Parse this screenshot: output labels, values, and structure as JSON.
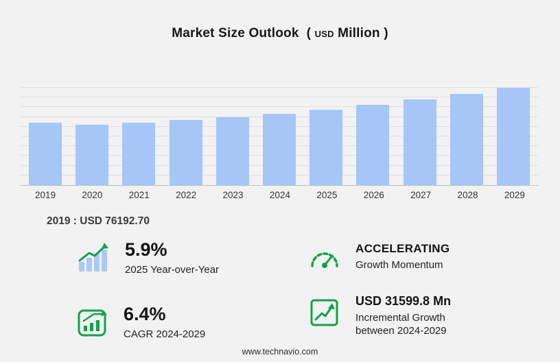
{
  "title": {
    "main": "Market Size Outlook",
    "open": "(",
    "currency": "USD",
    "unit": "Million",
    "close": ")"
  },
  "chart_data": {
    "type": "bar",
    "title": "Market Size Outlook (USD Million)",
    "categories": [
      "2019",
      "2020",
      "2021",
      "2022",
      "2023",
      "2024",
      "2025",
      "2026",
      "2027",
      "2028",
      "2029"
    ],
    "values": [
      76192.7,
      73800,
      76000,
      79000,
      82600,
      86892.3,
      92018.9,
      97600,
      103900,
      110900,
      118492.1
    ],
    "xlabel": "",
    "ylabel": "",
    "ylim": [
      0,
      120000
    ],
    "grid": "horizontal",
    "legend": "none",
    "bar_color": "#a6c6f8"
  },
  "base_year_label": "2019 : USD  76192.70",
  "stats": [
    {
      "icon": "bar-growth-arrow-icon",
      "value": "5.9%",
      "label": "2025 Year-over-Year"
    },
    {
      "icon": "speedometer-icon",
      "value": "ACCELERATING",
      "label": "Growth Momentum"
    },
    {
      "icon": "cagr-chart-icon",
      "value": "6.4%",
      "label": "CAGR 2024-2029"
    },
    {
      "icon": "incremental-growth-icon",
      "value": "USD 31599.8 Mn",
      "label": "Incremental Growth between 2024-2029"
    }
  ],
  "footer": {
    "url": "www.technavio.com"
  },
  "colors": {
    "accent_green": "#12a14b",
    "bar_blue": "#a6c6f8",
    "icon_bar_blue": "#a9c9f9"
  }
}
